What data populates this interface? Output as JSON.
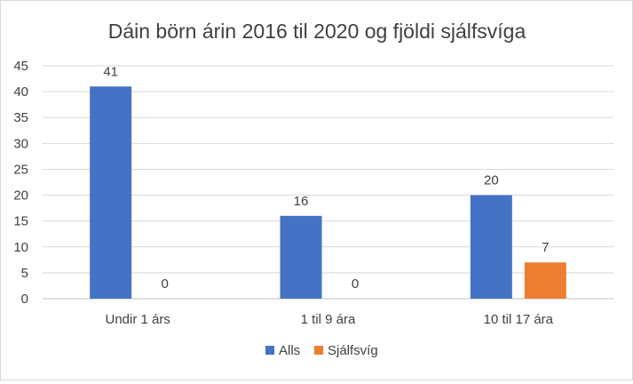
{
  "chart_data": {
    "type": "bar",
    "title": "Dáin börn árin 2016 til 2020 og fjöldi sjálfsvíga",
    "xlabel": "",
    "ylabel": "",
    "categories": [
      "Undir 1 árs",
      "1 til 9 ára",
      "10 til 17 ára"
    ],
    "series": [
      {
        "name": "Alls",
        "values": [
          41,
          16,
          20
        ],
        "color": "#4472c4"
      },
      {
        "name": "Sjálfsvíg",
        "values": [
          0,
          0,
          7
        ],
        "color": "#ed7d31"
      }
    ],
    "ylim": [
      0,
      45
    ],
    "yticks": [
      "0",
      "5",
      "10",
      "15",
      "20",
      "25",
      "30",
      "35",
      "40",
      "45"
    ],
    "grid": true,
    "legend": "bottom",
    "data_labels": true
  }
}
